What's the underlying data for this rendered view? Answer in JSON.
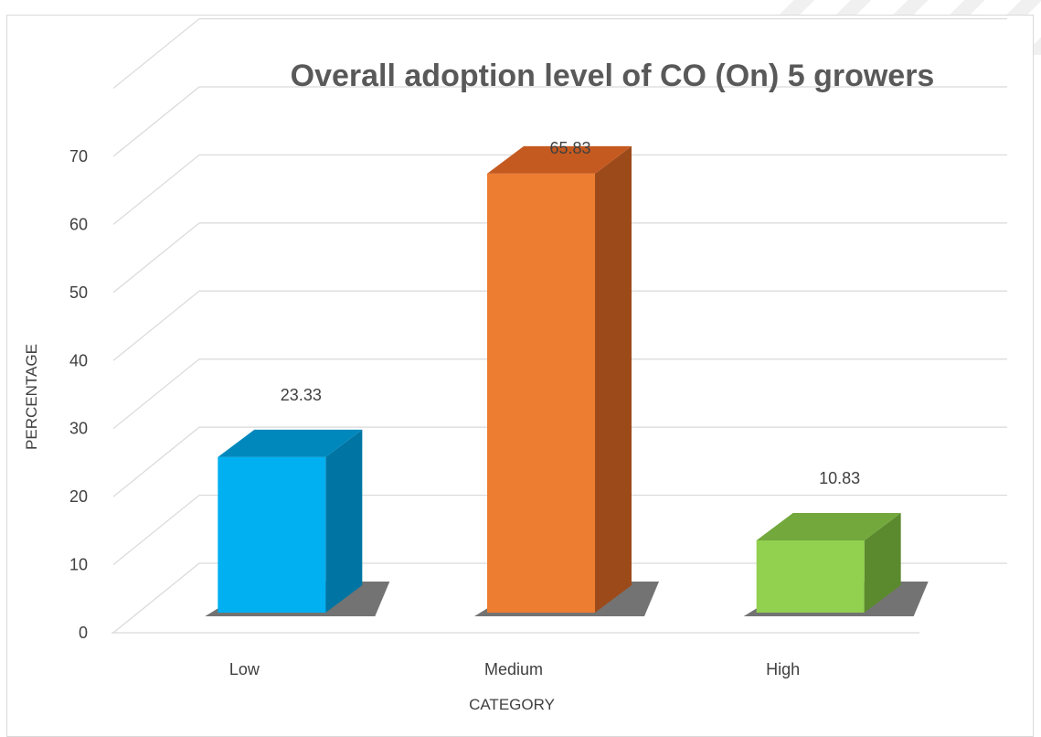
{
  "chart_data": {
    "type": "bar",
    "title": "Overall adoption level of CO (On) 5 growers",
    "xlabel": "CATEGORY",
    "ylabel": "PERCENTAGE",
    "categories": [
      "Low",
      "Medium",
      "High"
    ],
    "values": [
      23.33,
      65.83,
      10.83
    ],
    "value_labels": [
      "23.33",
      "65.83",
      "10.83"
    ],
    "ylim": [
      0,
      70
    ],
    "yticks": [
      0,
      10,
      20,
      30,
      40,
      50,
      60,
      70
    ],
    "grid": true,
    "legend": "none",
    "colors": [
      {
        "front": "#00b0f0",
        "side": "#0075a3",
        "top": "#0088bd"
      },
      {
        "front": "#ed7d31",
        "side": "#9c4a1a",
        "top": "#c55a20"
      },
      {
        "front": "#92d050",
        "side": "#5b8a2e",
        "top": "#72a83c"
      }
    ]
  }
}
